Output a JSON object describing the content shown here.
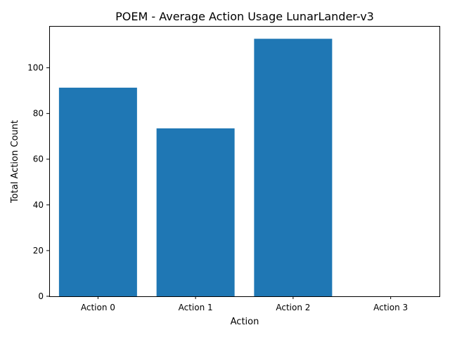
{
  "chart_data": {
    "type": "bar",
    "title": "POEM - Average Action Usage LunarLander-v3",
    "xlabel": "Action",
    "ylabel": "Total Action Count",
    "categories": [
      "Action 0",
      "Action 1",
      "Action 2",
      "Action 3"
    ],
    "values": [
      91.3,
      73.5,
      112.7,
      0
    ],
    "ylim": [
      0,
      118.3
    ],
    "yticks": [
      0,
      20,
      40,
      60,
      80,
      100
    ],
    "grid": false,
    "bar_color": "#1f77b4"
  }
}
